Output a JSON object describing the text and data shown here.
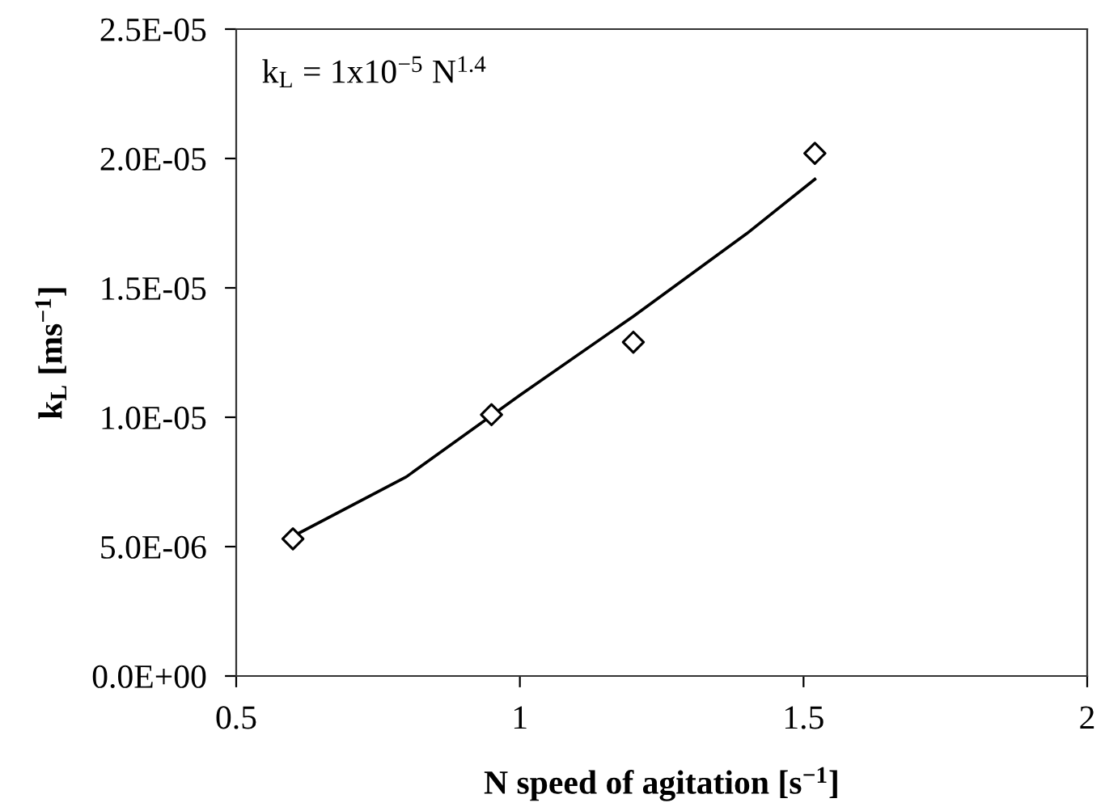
{
  "chart_data": {
    "type": "scatter",
    "xlabel": "N speed of agitation [s$^{−1}$]",
    "ylabel": "k$_{L}$ [ms$^{−1}$]",
    "annotations": [
      "k$_{L}$ = 1x10$^{−5}$ N$^{1.4}$"
    ],
    "series": [
      {
        "color": "#000000",
        "marker": "diamond",
        "x": [
          0.6,
          0.95,
          1.2,
          1.52
        ],
        "values": [
          5.3e-06,
          1.01e-05,
          1.29e-05,
          2.02e-05
        ]
      },
      {
        "type": "line",
        "color": "#000000",
        "marker": "none",
        "line_style": "solid",
        "x": [
          0.6,
          0.8,
          1.0,
          1.2,
          1.4,
          1.52
        ],
        "values": [
          5.4e-06,
          7.7e-06,
          1.085e-05,
          1.39e-05,
          1.71e-05,
          1.92e-05
        ]
      }
    ],
    "xlim": [
      0.5,
      2
    ],
    "xticks": [
      0.5,
      1,
      1.5,
      2
    ],
    "ylim": [
      0,
      2.5e-05
    ],
    "yticks": [
      {
        "value": 0,
        "label": "0.0E+00"
      },
      {
        "value": 5e-06,
        "label": "5.0E-06"
      },
      {
        "value": 1e-05,
        "label": "1.0E-05"
      },
      {
        "value": 1.5e-05,
        "label": "1.5E-05"
      },
      {
        "value": 2e-05,
        "label": "2.0E-05"
      },
      {
        "value": 2.5e-05,
        "label": "2.5E-05"
      }
    ],
    "grid": false,
    "legend": false
  }
}
